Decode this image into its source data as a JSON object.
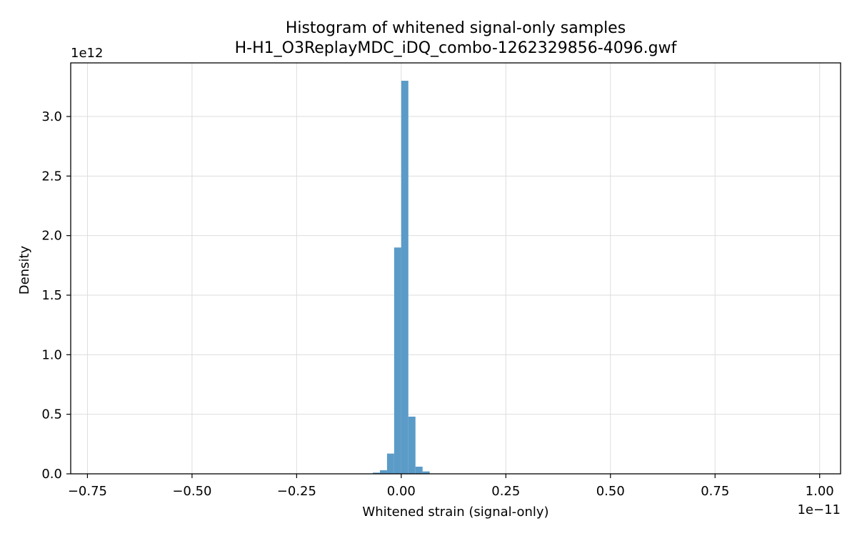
{
  "chart_data": {
    "type": "bar",
    "title": "Histogram of whitened signal-only samples",
    "subtitle": "H-H1_O3ReplayMDC_iDQ_combo-1262329856-4096.gwf",
    "xlabel": "Whitened strain (signal-only)",
    "ylabel": "Density",
    "x_offset_text": "1e−11",
    "y_offset_text": "1e12",
    "x_unit_multiplier": 1e-11,
    "y_unit_multiplier": 1000000000000.0,
    "xlim": [
      -0.79,
      1.05
    ],
    "ylim": [
      0,
      3.45
    ],
    "x_ticks": [
      -0.75,
      -0.5,
      -0.25,
      0.0,
      0.25,
      0.5,
      0.75,
      1.0
    ],
    "x_tick_labels": [
      "−0.75",
      "−0.50",
      "−0.25",
      "0.00",
      "0.25",
      "0.50",
      "0.75",
      "1.00"
    ],
    "y_ticks": [
      0.0,
      0.5,
      1.0,
      1.5,
      2.0,
      2.5,
      3.0
    ],
    "y_tick_labels": [
      "0.0",
      "0.5",
      "1.0",
      "1.5",
      "2.0",
      "2.5",
      "3.0"
    ],
    "grid": true,
    "bar_color": "#5b9bc8",
    "bins": [
      {
        "x0": -0.068,
        "x1": -0.051,
        "value": 0.01
      },
      {
        "x0": -0.051,
        "x1": -0.034,
        "value": 0.03
      },
      {
        "x0": -0.034,
        "x1": -0.017,
        "value": 0.17
      },
      {
        "x0": -0.017,
        "x1": 0.0,
        "value": 1.9
      },
      {
        "x0": 0.0,
        "x1": 0.017,
        "value": 3.3
      },
      {
        "x0": 0.017,
        "x1": 0.034,
        "value": 0.48
      },
      {
        "x0": 0.034,
        "x1": 0.051,
        "value": 0.06
      },
      {
        "x0": 0.051,
        "x1": 0.068,
        "value": 0.02
      }
    ]
  }
}
